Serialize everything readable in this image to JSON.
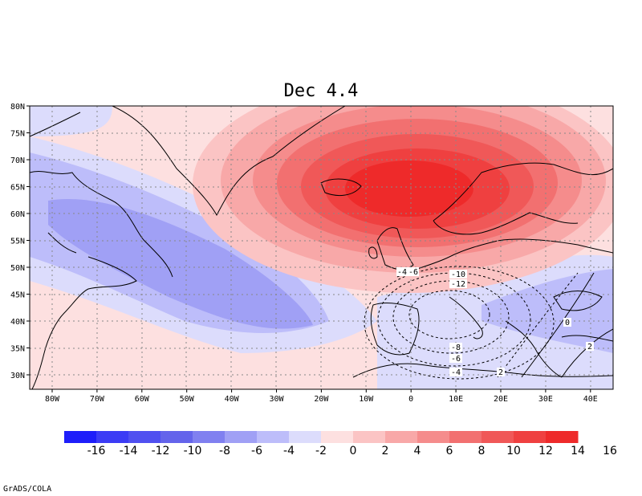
{
  "title": "Dec 4.4",
  "credit": "GrADS/COLA",
  "map": {
    "lat_ticks": [
      "80N",
      "75N",
      "70N",
      "65N",
      "60N",
      "55N",
      "50N",
      "45N",
      "40N",
      "35N",
      "30N"
    ],
    "lon_ticks": [
      "80W",
      "70W",
      "60W",
      "50W",
      "40W",
      "30W",
      "20W",
      "10W",
      "0",
      "10E",
      "20E",
      "30E",
      "40E"
    ],
    "extent": {
      "lon_min": -85,
      "lon_max": 45,
      "lat_min": 27.5,
      "lat_max": 80
    },
    "shaded_field": {
      "positive_center": {
        "lon": 2,
        "lat": 66,
        "max": 16
      },
      "negative_center": {
        "lon": -45,
        "lat": 47,
        "min": -6
      }
    },
    "contours": [
      {
        "label": "-10"
      },
      {
        "label": "-12"
      },
      {
        "label": "-8"
      },
      {
        "label": "-6"
      },
      {
        "label": "-4"
      },
      {
        "label": "-4"
      },
      {
        "label": "-6"
      },
      {
        "label": "0"
      },
      {
        "label": "2"
      },
      {
        "label": "2"
      }
    ]
  },
  "colorbar": {
    "labels": [
      "-16",
      "-14",
      "-12",
      "-10",
      "-8",
      "-6",
      "-4",
      "-2",
      "0",
      "2",
      "4",
      "6",
      "8",
      "10",
      "12",
      "14",
      "16"
    ],
    "colors": [
      "#1e1efa",
      "#3c3cf5",
      "#5050f0",
      "#6464eb",
      "#8080f0",
      "#a0a0f5",
      "#bdbdfa",
      "#dcdcfc",
      "#fde0e0",
      "#fbc4c4",
      "#f8a8a8",
      "#f58c8c",
      "#f27070",
      "#f05858",
      "#ef4040",
      "#ee2a2a"
    ]
  }
}
